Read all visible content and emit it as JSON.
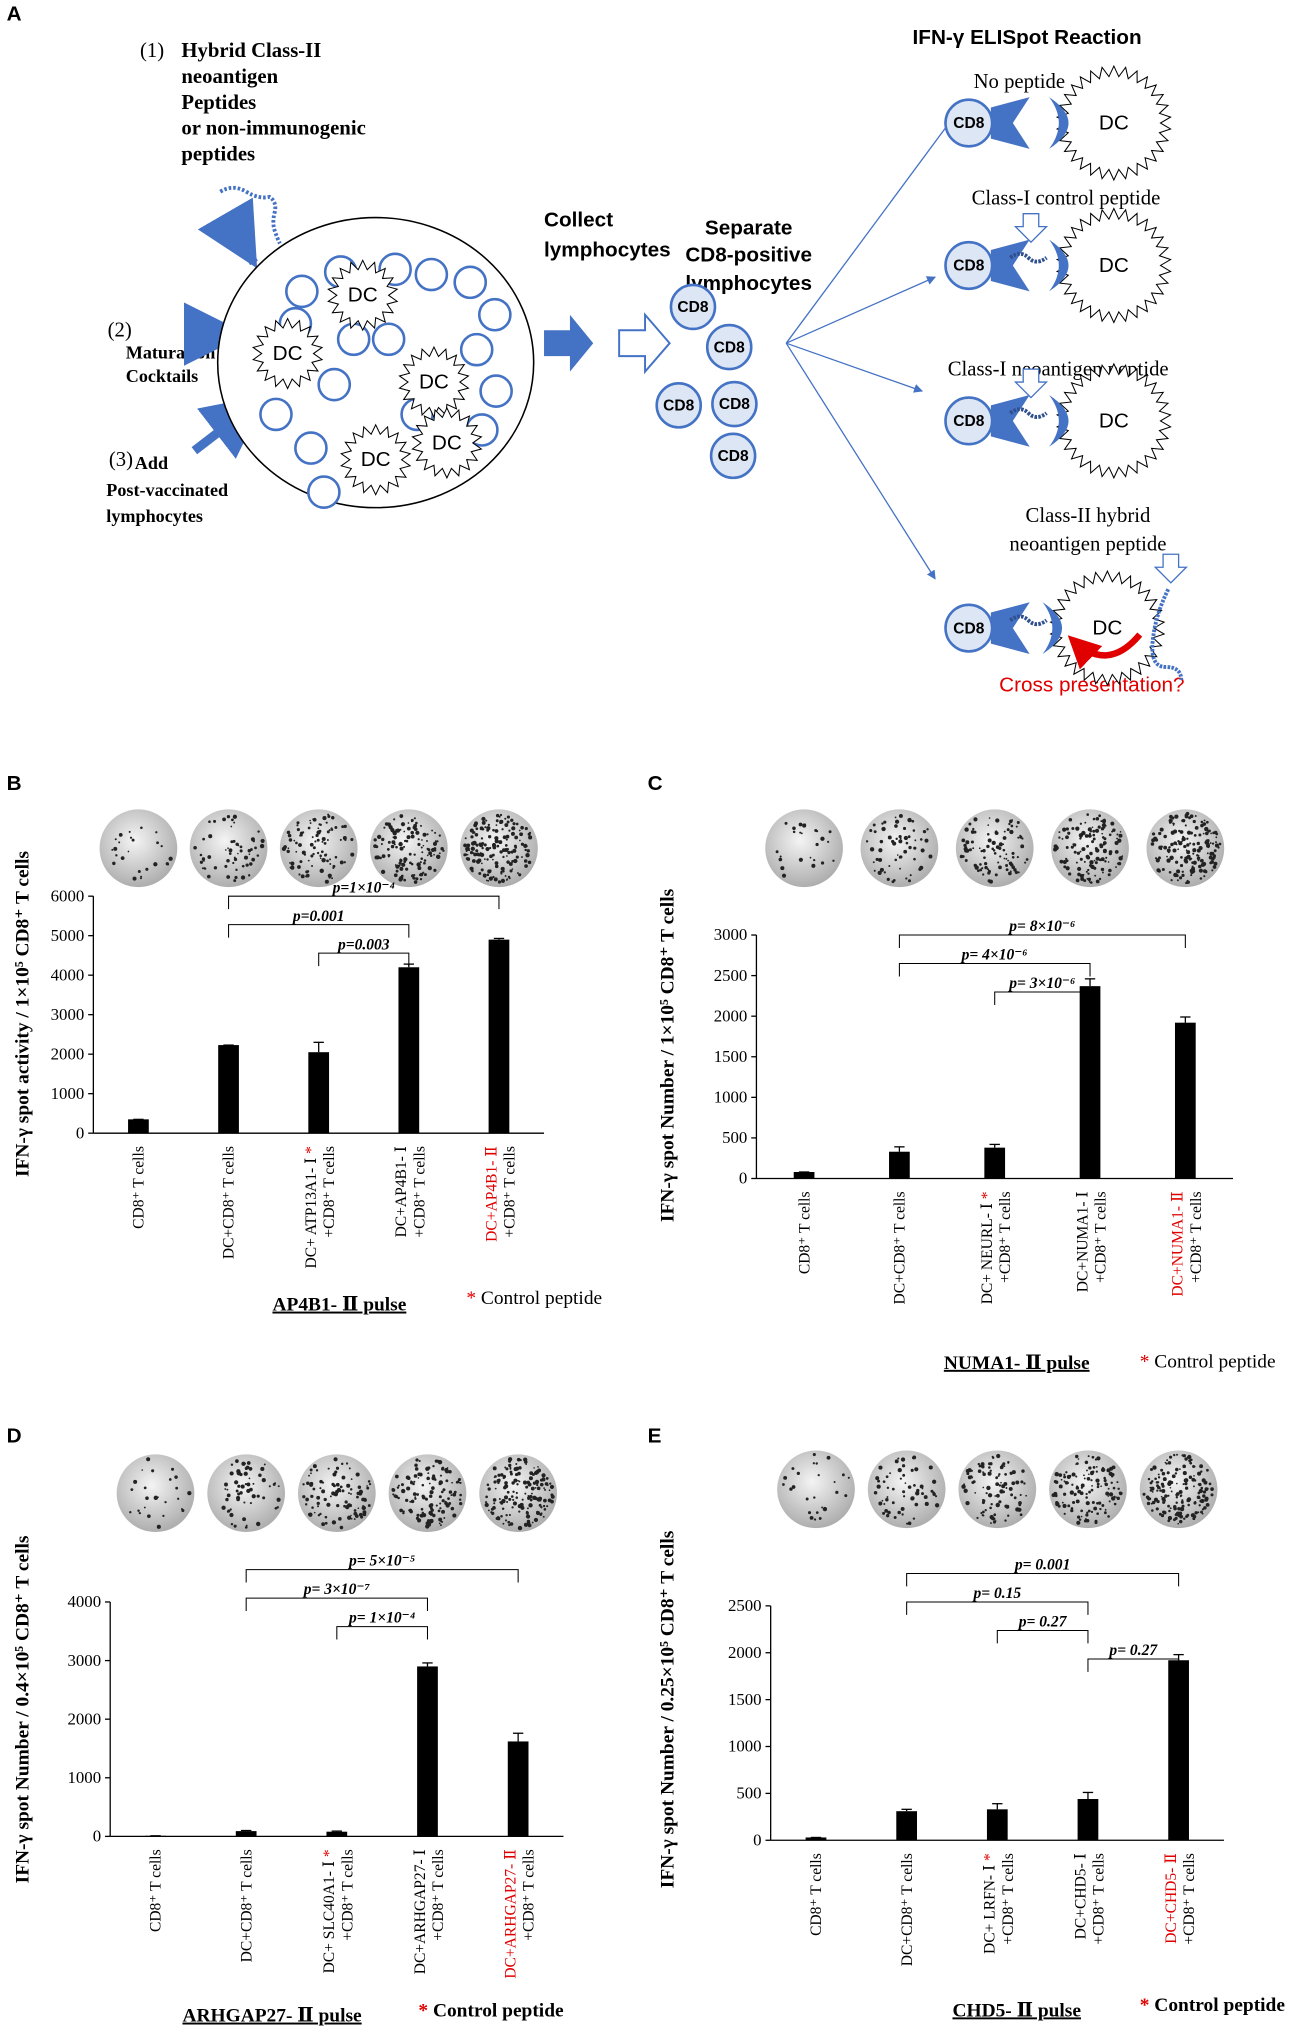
{
  "diagram": {
    "panel": "A",
    "step1": {
      "number": "(1)",
      "lines": [
        "Hybrid Class-II",
        "neoantigen",
        "Peptides",
        " or non-immunogenic",
        "peptides"
      ]
    },
    "step2": {
      "number": "(2)",
      "lines": [
        "Maturation",
        "Cocktails"
      ]
    },
    "step3": {
      "number": "(3)",
      "lines": [
        "Add",
        "Post-vaccinated",
        "lymphocytes"
      ]
    },
    "collect": [
      "Collect",
      "lymphocytes"
    ],
    "separate": [
      "Separate",
      "CD8-positive",
      "lymphocytes"
    ],
    "reaction_title": "IFN-γ ELISpot Reaction",
    "cell_dc": "DC",
    "cell_cd8": "CD8",
    "conditions": [
      [
        "No peptide"
      ],
      [
        "Class-I control peptide"
      ],
      [
        "Class-I neoantigen peptide"
      ],
      [
        "Class-II hybrid",
        "neoantigen peptide"
      ]
    ],
    "cross": "Cross presentation?"
  },
  "chart_data": [
    {
      "type": "bar",
      "panel": "B",
      "ylabel": "IFN-γ spot activity / 1×10⁵ CD8⁺ T cells",
      "title": "AP4B1- Ⅱ pulse",
      "legend": "* Control peptide",
      "color": "#000000",
      "categories": [
        [
          "CD8⁺ T cells"
        ],
        [
          "DC+CD8⁺ T cells"
        ],
        [
          "DC+ ATP13A1- Ⅰ *",
          "+CD8⁺ T cells"
        ],
        [
          "DC+AP4B1- Ⅰ",
          "+CD8⁺ T cells"
        ],
        [
          "DC+AP4B1- Ⅱ",
          "+CD8⁺ T cells"
        ]
      ],
      "label_colors": [
        "#000000",
        "#000000",
        "#000000",
        "#000000",
        "#e00000"
      ],
      "values": [
        350,
        2230,
        2050,
        4200,
        4900
      ],
      "errors": [
        0,
        0,
        250,
        80,
        30
      ],
      "ylim": [
        0,
        6000
      ],
      "yticks": [
        0,
        1000,
        2000,
        3000,
        4000,
        5000,
        6000
      ],
      "comparisons": [
        {
          "from": 1,
          "to": 4,
          "label": "p=1×10⁻⁴"
        },
        {
          "from": 1,
          "to": 3,
          "label": "p=0.001"
        },
        {
          "from": 2,
          "to": 3,
          "label": "p=0.003"
        }
      ]
    },
    {
      "type": "bar",
      "panel": "C",
      "ylabel": "IFN-γ spot Number / 1×10⁵ CD8⁺ T cells",
      "title": "NUMA1- Ⅱ pulse",
      "legend": "* Control peptide",
      "color": "#000000",
      "categories": [
        [
          "CD8⁺ T cells"
        ],
        [
          "DC+CD8⁺ T cells"
        ],
        [
          "DC+ NEURL- Ⅰ *",
          "+CD8⁺ T cells"
        ],
        [
          "DC+NUMA1- Ⅰ",
          "+CD8⁺ T cells"
        ],
        [
          "DC+NUMA1- Ⅱ",
          "+CD8⁺ T cells"
        ]
      ],
      "label_colors": [
        "#000000",
        "#000000",
        "#000000",
        "#000000",
        "#e00000"
      ],
      "values": [
        80,
        330,
        380,
        2370,
        1920
      ],
      "errors": [
        0,
        60,
        40,
        90,
        70
      ],
      "ylim": [
        0,
        3000
      ],
      "yticks": [
        0,
        500,
        1000,
        1500,
        2000,
        2500,
        3000
      ],
      "comparisons": [
        {
          "from": 1,
          "to": 4,
          "label": "p= 8×10⁻⁶"
        },
        {
          "from": 1,
          "to": 3,
          "label": "p= 4×10⁻⁶"
        },
        {
          "from": 2,
          "to": 3,
          "label": "p= 3×10⁻⁶"
        }
      ]
    },
    {
      "type": "bar",
      "panel": "D",
      "ylabel": "IFN-γ spot Number / 0.4×10⁵ CD8⁺ T cells",
      "title": "ARHGAP27- Ⅱ pulse",
      "legend": "* Control peptide",
      "color": "#000000",
      "categories": [
        [
          "CD8⁺ T cells"
        ],
        [
          "DC+CD8⁺ T cells"
        ],
        [
          "DC+ SLC40A1- Ⅰ *",
          "+CD8⁺ T cells"
        ],
        [
          "DC+ARHGAP27- Ⅰ",
          "+CD8⁺ T cells"
        ],
        [
          "DC+ARHGAP27- Ⅱ",
          "+CD8⁺ T cells"
        ]
      ],
      "label_colors": [
        "#000000",
        "#000000",
        "#000000",
        "#000000",
        "#e00000"
      ],
      "values": [
        10,
        90,
        80,
        2900,
        1620
      ],
      "errors": [
        0,
        10,
        10,
        60,
        140
      ],
      "ylim": [
        0,
        4000
      ],
      "yticks": [
        0,
        1000,
        2000,
        3000,
        4000
      ],
      "comparisons": [
        {
          "from": 1,
          "to": 4,
          "label": "p= 5×10⁻⁵"
        },
        {
          "from": 1,
          "to": 3,
          "label": "p= 3×10⁻⁷"
        },
        {
          "from": 2,
          "to": 3,
          "label": "p= 1×10⁻⁴"
        }
      ]
    },
    {
      "type": "bar",
      "panel": "E",
      "ylabel": "IFN-γ spot Number / 0.25×10⁵ CD8⁺ T cells",
      "title": "CHD5- Ⅱ pulse",
      "legend": "* Control peptide",
      "color": "#000000",
      "categories": [
        [
          "CD8⁺ T cells"
        ],
        [
          "DC+CD8⁺ T cells"
        ],
        [
          "DC+ LRFN- Ⅰ *",
          "+CD8⁺ T cells"
        ],
        [
          "DC+CHD5- Ⅰ",
          "+CD8⁺ T cells"
        ],
        [
          "DC+CHD5- Ⅱ",
          "+CD8⁺ T cells"
        ]
      ],
      "label_colors": [
        "#000000",
        "#000000",
        "#000000",
        "#000000",
        "#e00000"
      ],
      "values": [
        30,
        310,
        330,
        440,
        1920
      ],
      "errors": [
        0,
        20,
        60,
        70,
        60
      ],
      "ylim": [
        0,
        2500
      ],
      "yticks": [
        0,
        500,
        1000,
        1500,
        2000,
        2500
      ],
      "comparisons": [
        {
          "from": 1,
          "to": 4,
          "label": "p= 0.001"
        },
        {
          "from": 1,
          "to": 3,
          "label": "p= 0.15"
        },
        {
          "from": 2,
          "to": 3,
          "label": "p= 0.27"
        },
        {
          "from": 3,
          "to": 4,
          "label": "p= 0.27"
        }
      ]
    }
  ]
}
